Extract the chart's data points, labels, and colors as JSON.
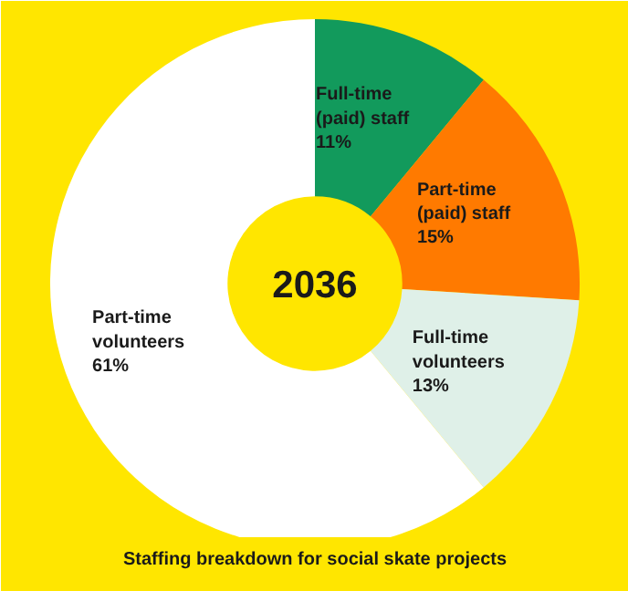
{
  "chart_data": {
    "type": "donut",
    "title": "Staffing breakdown for social skate projects",
    "categories": [
      "Full-time (paid) staff",
      "Part-time (paid) staff",
      "Full-time volunteers",
      "Part-time volunteers"
    ],
    "values": [
      11,
      15,
      13,
      61
    ],
    "colors": [
      "#129a5c",
      "#ff7a00",
      "#dff0e8",
      "#ffffff"
    ],
    "value_labels": [
      "11%",
      "15%",
      "13%",
      "61%"
    ],
    "annotations": [
      "2036"
    ]
  }
}
